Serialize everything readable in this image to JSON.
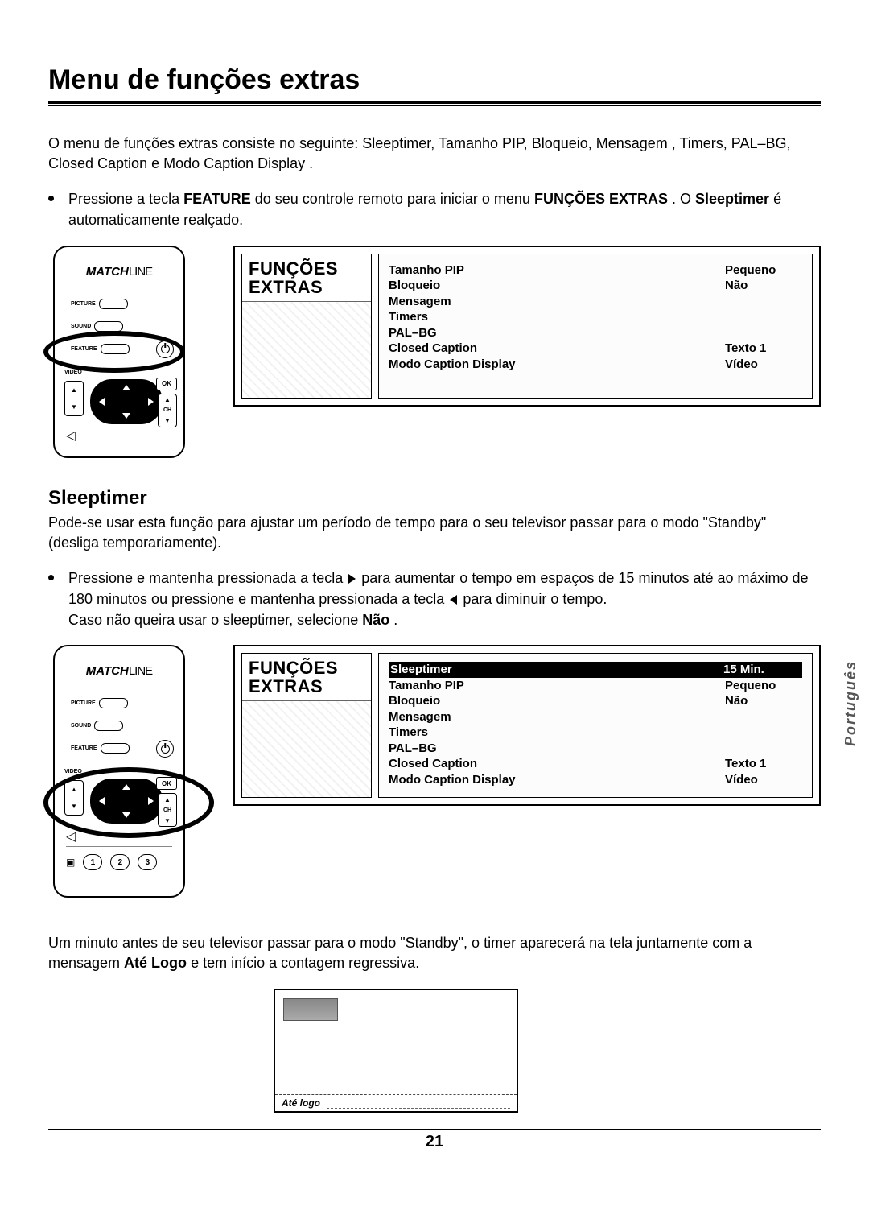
{
  "page": {
    "title": "Menu de funções extras",
    "intro": "O menu de funções extras consiste no seguinte: Sleeptimer, Tamanho PIP, Bloqueio, Mensagem , Timers, PAL–BG, Closed Caption e Modo Caption Display .",
    "bullet1_pre": "Pressione a tecla ",
    "bullet1_key1": "FEATURE",
    "bullet1_mid": " do seu controle remoto para iniciar o menu ",
    "bullet1_key2": "FUNÇÕES EXTRAS",
    "bullet1_post": ". O ",
    "bullet1_key3": "Sleeptimer",
    "bullet1_end": " é automaticamente realçado.",
    "section_sleep": "Sleeptimer",
    "sleep_intro": "Pode-se usar esta função para ajustar um período de tempo para o seu televisor passar para o modo \"Standby\" (desliga temporariamente).",
    "sleep_bullet_a": "Pressione e mantenha pressionada a tecla ",
    "sleep_bullet_b": " para aumentar o tempo em espaços de 15 minutos até ao máximo de 180 minutos ou pressione e mantenha pressionada a tecla ",
    "sleep_bullet_c": " para diminuir o tempo.",
    "sleep_bullet_line2a": "Caso não queira usar o sleeptimer, selecione ",
    "sleep_bullet_line2b": "Não",
    "sleep_bullet_line2c": ".",
    "countdown_text_a": "Um minuto antes de seu televisor passar para o modo \"Standby\", o timer aparecerá na tela juntamente com a mensagem ",
    "countdown_bold": "Até Logo",
    "countdown_text_b": " e tem início a contagem regressiva.",
    "ate_logo": "Até logo",
    "page_number": "21",
    "side_lang": "Português"
  },
  "brand": {
    "a": "MATCH",
    "b": "LINE"
  },
  "remote": {
    "labels": {
      "picture": "PICTURE",
      "sound": "SOUND",
      "feature": "FEATURE",
      "video": "VIDEO",
      "ch": "CH",
      "ok": "OK"
    },
    "nums": [
      "1",
      "2",
      "3"
    ]
  },
  "screen": {
    "header1": "FUNÇÕES",
    "header2": "EXTRAS",
    "menu1": [
      {
        "label": "",
        "value": ""
      },
      {
        "label": "Tamanho PIP",
        "value": "Pequeno"
      },
      {
        "label": "Bloqueio",
        "value": "Não"
      },
      {
        "label": "Mensagem",
        "value": ""
      },
      {
        "label": "Timers",
        "value": ""
      },
      {
        "label": "PAL–BG",
        "value": ""
      },
      {
        "label": "Closed Caption",
        "value": "Texto 1"
      },
      {
        "label": "Modo Caption Display",
        "value": "Vídeo"
      }
    ],
    "menu2": [
      {
        "label": "Sleeptimer",
        "value": "15 Min.",
        "selected": true
      },
      {
        "label": "Tamanho PIP",
        "value": "Pequeno"
      },
      {
        "label": "Bloqueio",
        "value": "Não"
      },
      {
        "label": "Mensagem",
        "value": ""
      },
      {
        "label": "Timers",
        "value": ""
      },
      {
        "label": "PAL–BG",
        "value": ""
      },
      {
        "label": "Closed Caption",
        "value": "Texto 1"
      },
      {
        "label": "Modo Caption Display",
        "value": "Vídeo"
      }
    ]
  },
  "colors": {
    "text": "#000000",
    "bg": "#ffffff",
    "rule": "#000000"
  }
}
